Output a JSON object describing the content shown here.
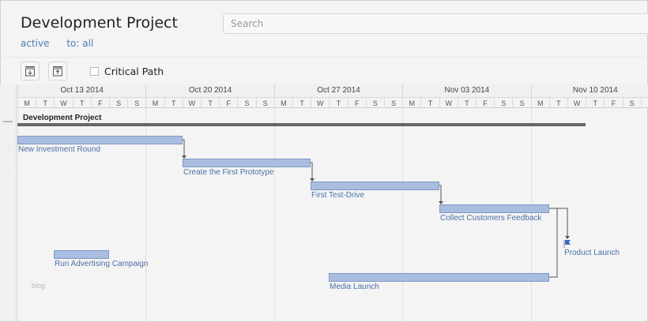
{
  "header": {
    "title": "Development Project",
    "search_placeholder": "Search",
    "filters": [
      "active",
      "to: all"
    ]
  },
  "toolbar": {
    "expand_icon": "download-box-icon",
    "collapse_icon": "upload-box-icon",
    "critical_path_label": "Critical Path",
    "critical_path_checked": false
  },
  "timeline": {
    "start": "2014-10-13",
    "weeks": [
      "Oct 13 2014",
      "Oct 20 2014",
      "Oct 27 2014",
      "Nov 03 2014",
      "Nov 10 2014"
    ],
    "days": [
      "M",
      "T",
      "W",
      "T",
      "F",
      "S",
      "S"
    ]
  },
  "project": {
    "name": "Development Project",
    "start": "2014-10-13",
    "end": "2014-11-13"
  },
  "tasks": [
    {
      "name": "New Investment Round",
      "start": "2014-10-13",
      "end": "2014-10-22",
      "row": 0
    },
    {
      "name": "Create the First Prototype",
      "start": "2014-10-22",
      "end": "2014-10-29",
      "row": 1
    },
    {
      "name": "First Test-Drive",
      "start": "2014-10-29",
      "end": "2014-11-05",
      "row": 2
    },
    {
      "name": "Collect Customers Feedback",
      "start": "2014-11-05",
      "end": "2014-11-11",
      "row": 3
    },
    {
      "name": "Product Launch",
      "start": "2014-11-12",
      "milestone": true,
      "row": 4
    },
    {
      "name": "Run Advertising Campaign",
      "start": "2014-10-15",
      "end": "2014-10-18",
      "row": 5
    },
    {
      "name": "Media Launch",
      "start": "2014-10-30",
      "end": "2014-11-11",
      "row": 6
    }
  ],
  "links": [
    [
      0,
      1,
      "FS"
    ],
    [
      1,
      2,
      "FS"
    ],
    [
      2,
      3,
      "FS"
    ],
    [
      3,
      4,
      "FS"
    ],
    [
      3,
      6,
      "FF"
    ]
  ],
  "extra_label": "blog",
  "colors": {
    "bar": "#a9bde0",
    "bar_border": "#7f97c6",
    "label": "#4a6fa8",
    "link": "#555555",
    "milestone": "#3b6cc4"
  }
}
